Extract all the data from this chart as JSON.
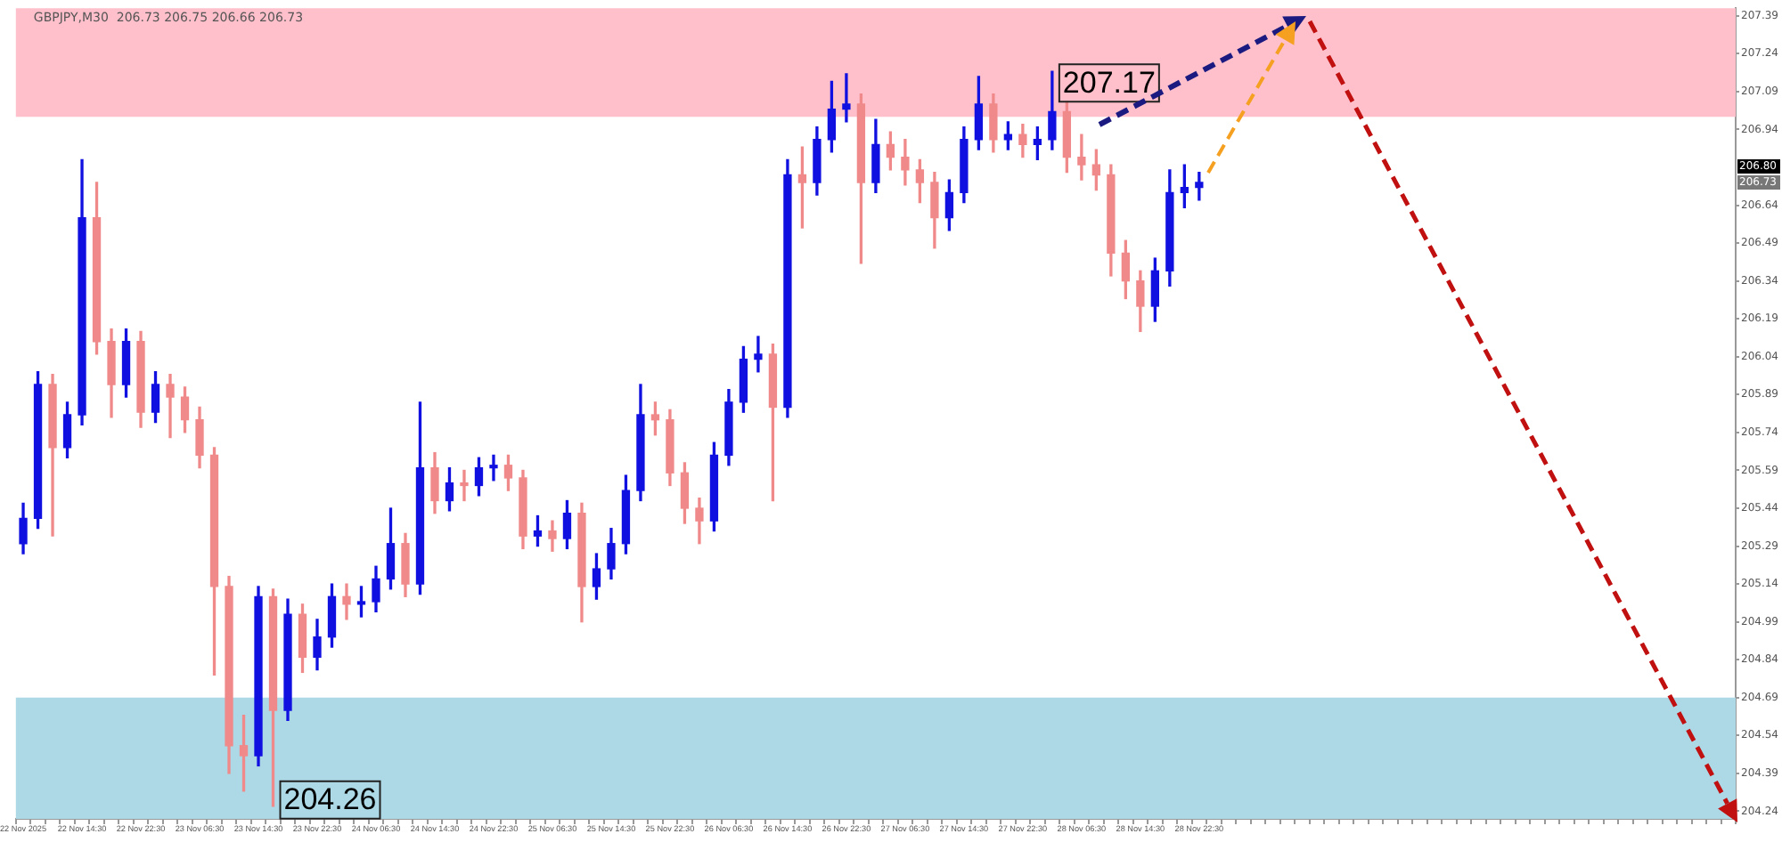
{
  "chart_data": {
    "type": "candlestick",
    "title": "GBPJPY,M30  206.73 206.75 206.66 206.73",
    "categories": [
      "22 Nov 2025",
      null,
      null,
      null,
      "22 Nov 14:30",
      null,
      null,
      null,
      "22 Nov 22:30",
      null,
      null,
      null,
      "23 Nov 06:30",
      null,
      null,
      null,
      "23 Nov 14:30",
      null,
      null,
      null,
      "23 Nov 22:30",
      null,
      null,
      null,
      "24 Nov 06:30",
      null,
      null,
      null,
      "24 Nov 14:30",
      null,
      null,
      null,
      "24 Nov 22:30",
      null,
      null,
      null,
      "25 Nov 06:30",
      null,
      null,
      null,
      "25 Nov 14:30",
      null,
      null,
      null,
      "25 Nov 22:30",
      null,
      null,
      null,
      "26 Nov 06:30",
      null,
      null,
      null,
      "26 Nov 14:30",
      null,
      null,
      null,
      "26 Nov 22:30",
      null,
      null,
      null,
      "27 Nov 06:30",
      null,
      null,
      null,
      "27 Nov 14:30",
      null,
      null,
      null,
      "27 Nov 22:30",
      null,
      null,
      null,
      "28 Nov 06:30",
      null,
      null,
      null,
      "28 Nov 14:30",
      null,
      null,
      null,
      "28 Nov 22:30",
      null,
      null,
      null,
      null,
      null,
      null,
      null,
      null,
      null,
      null,
      null,
      null,
      null,
      null,
      null,
      null,
      null,
      null,
      null,
      null,
      null,
      null,
      null,
      null,
      null,
      null,
      null,
      null,
      null,
      null,
      null,
      null,
      null,
      null,
      null,
      null
    ],
    "ohlc": [
      [
        205.3,
        205.46,
        205.26,
        205.4
      ],
      [
        205.4,
        205.98,
        205.36,
        205.93
      ],
      [
        205.93,
        205.97,
        205.33,
        205.68
      ],
      [
        205.68,
        205.86,
        205.64,
        205.81
      ],
      [
        205.81,
        206.82,
        205.77,
        206.59
      ],
      [
        206.59,
        206.73,
        206.05,
        206.1
      ],
      [
        206.1,
        206.15,
        205.8,
        205.93
      ],
      [
        205.93,
        206.15,
        205.88,
        206.1
      ],
      [
        206.1,
        206.14,
        205.76,
        205.82
      ],
      [
        205.82,
        205.98,
        205.78,
        205.93
      ],
      [
        205.93,
        205.97,
        205.72,
        205.88
      ],
      [
        205.88,
        205.92,
        205.74,
        205.79
      ],
      [
        205.79,
        205.84,
        205.6,
        205.65
      ],
      [
        205.65,
        205.68,
        204.78,
        205.13
      ],
      [
        205.13,
        205.17,
        204.39,
        204.5
      ],
      [
        204.5,
        204.62,
        204.32,
        204.46
      ],
      [
        204.46,
        205.13,
        204.42,
        205.09
      ],
      [
        205.09,
        205.12,
        204.26,
        204.64
      ],
      [
        204.64,
        205.08,
        204.6,
        205.02
      ],
      [
        205.02,
        205.06,
        204.79,
        204.85
      ],
      [
        204.85,
        205.0,
        204.8,
        204.93
      ],
      [
        204.93,
        205.14,
        204.89,
        205.09
      ],
      [
        205.09,
        205.14,
        205.0,
        205.06
      ],
      [
        205.06,
        205.13,
        205.01,
        205.07
      ],
      [
        205.07,
        205.21,
        205.03,
        205.16
      ],
      [
        205.16,
        205.44,
        205.12,
        205.3
      ],
      [
        205.3,
        205.34,
        205.09,
        205.14
      ],
      [
        205.14,
        205.86,
        205.1,
        205.6
      ],
      [
        205.6,
        205.66,
        205.42,
        205.47
      ],
      [
        205.47,
        205.6,
        205.43,
        205.54
      ],
      [
        205.54,
        205.59,
        205.47,
        205.53
      ],
      [
        205.53,
        205.64,
        205.49,
        205.6
      ],
      [
        205.6,
        205.65,
        205.55,
        205.61
      ],
      [
        205.61,
        205.65,
        205.51,
        205.56
      ],
      [
        205.56,
        205.59,
        205.28,
        205.33
      ],
      [
        205.33,
        205.41,
        205.29,
        205.35
      ],
      [
        205.35,
        205.39,
        205.27,
        205.32
      ],
      [
        205.32,
        205.47,
        205.28,
        205.42
      ],
      [
        205.42,
        205.46,
        204.99,
        205.13
      ],
      [
        205.13,
        205.26,
        205.08,
        205.2
      ],
      [
        205.2,
        205.36,
        205.16,
        205.3
      ],
      [
        205.3,
        205.57,
        205.26,
        205.51
      ],
      [
        205.51,
        205.93,
        205.47,
        205.81
      ],
      [
        205.81,
        205.86,
        205.73,
        205.79
      ],
      [
        205.79,
        205.83,
        205.53,
        205.58
      ],
      [
        205.58,
        205.62,
        205.38,
        205.44
      ],
      [
        205.44,
        205.48,
        205.3,
        205.39
      ],
      [
        205.39,
        205.7,
        205.35,
        205.65
      ],
      [
        205.65,
        205.91,
        205.61,
        205.86
      ],
      [
        205.86,
        206.08,
        205.82,
        206.03
      ],
      [
        206.03,
        206.12,
        205.98,
        206.05
      ],
      [
        206.05,
        206.09,
        205.47,
        205.84
      ],
      [
        205.84,
        206.82,
        205.8,
        206.76
      ],
      [
        206.76,
        206.87,
        206.55,
        206.73
      ],
      [
        206.73,
        206.95,
        206.68,
        206.9
      ],
      [
        206.9,
        207.13,
        206.85,
        207.02
      ],
      [
        207.02,
        207.16,
        206.97,
        207.04
      ],
      [
        207.04,
        207.08,
        206.41,
        206.73
      ],
      [
        206.73,
        206.98,
        206.69,
        206.88
      ],
      [
        206.88,
        206.93,
        206.78,
        206.83
      ],
      [
        206.83,
        206.9,
        206.72,
        206.78
      ],
      [
        206.78,
        206.82,
        206.65,
        206.73
      ],
      [
        206.73,
        206.77,
        206.47,
        206.59
      ],
      [
        206.59,
        206.74,
        206.54,
        206.69
      ],
      [
        206.69,
        206.95,
        206.65,
        206.9
      ],
      [
        206.9,
        207.15,
        206.86,
        207.04
      ],
      [
        207.04,
        207.08,
        206.85,
        206.9
      ],
      [
        206.9,
        206.97,
        206.86,
        206.92
      ],
      [
        206.92,
        206.96,
        206.83,
        206.88
      ],
      [
        206.88,
        206.95,
        206.82,
        206.9
      ],
      [
        206.9,
        207.17,
        206.86,
        207.01
      ],
      [
        207.01,
        207.05,
        206.77,
        206.83
      ],
      [
        206.83,
        206.92,
        206.74,
        206.8
      ],
      [
        206.8,
        206.86,
        206.7,
        206.76
      ],
      [
        206.76,
        206.8,
        206.36,
        206.45
      ],
      [
        206.45,
        206.5,
        206.27,
        206.34
      ],
      [
        206.34,
        206.38,
        206.14,
        206.24
      ],
      [
        206.24,
        206.43,
        206.18,
        206.38
      ],
      [
        206.38,
        206.78,
        206.32,
        206.69
      ],
      [
        206.69,
        206.8,
        206.63,
        206.71
      ],
      [
        206.71,
        206.77,
        206.66,
        206.73
      ],
      null,
      null,
      null,
      null,
      null,
      null,
      null,
      null,
      null,
      null,
      null,
      null,
      null,
      null,
      null,
      null,
      null,
      null,
      null,
      null,
      null,
      null,
      null,
      null,
      null,
      null,
      null,
      null,
      null,
      null,
      null,
      null,
      null,
      null,
      null,
      null
    ],
    "ylim": [
      204.21,
      207.42
    ],
    "yticks": [
      204.24,
      204.39,
      204.54,
      204.69,
      204.84,
      204.99,
      205.14,
      205.29,
      205.44,
      205.59,
      205.74,
      205.89,
      206.04,
      206.19,
      206.34,
      206.49,
      206.64,
      206.94,
      207.09,
      207.24,
      207.39
    ],
    "bands": [
      {
        "axis": "y",
        "from": 206.99,
        "to": 207.42,
        "color": "#ffc0cb"
      },
      {
        "axis": "y",
        "from": 204.21,
        "to": 204.69,
        "color": "#add8e6"
      }
    ],
    "annotations": [
      "207.17",
      "204.26",
      "206.80",
      "206.73"
    ],
    "grid": false,
    "legend": false
  }
}
